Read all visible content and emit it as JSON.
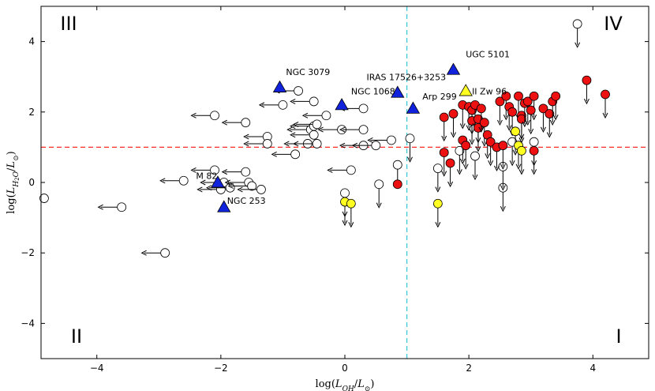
{
  "chart_data": {
    "type": "scatter",
    "title": "",
    "xlabel_html": "log(L<tspan baseline-shift='sub' font-size='9'>OH</tspan>/L<tspan baseline-shift='sub' font-size='9'>☉</tspan>)",
    "xlabel": "log(L_OH/L_☉)",
    "ylabel": "log(L_H2O/L_☉)",
    "xlim": [
      -4.9,
      4.9
    ],
    "ylim": [
      -5.0,
      5.0
    ],
    "xticks": [
      -4,
      -2,
      0,
      2,
      4
    ],
    "yticks": [
      -4,
      -2,
      0,
      2,
      4
    ],
    "grid": false,
    "reference_lines": [
      {
        "orientation": "horizontal",
        "value": 1.0,
        "color": "#ff2b2b",
        "style": "dashed"
      },
      {
        "orientation": "vertical",
        "value": 1.0,
        "color": "#3ec8d8",
        "style": "dashed"
      }
    ],
    "quadrants": [
      {
        "label": "III",
        "position": "top-left"
      },
      {
        "label": "IV",
        "position": "top-right"
      },
      {
        "label": "II",
        "position": "bottom-left"
      },
      {
        "label": "I",
        "position": "bottom-right"
      }
    ],
    "colors": {
      "open": "#ffffff",
      "red": "#ee1111",
      "yellow": "#ffff22",
      "blue": "#1122dd",
      "edge": "#000000"
    },
    "open_both_limits": [
      [
        -3.6,
        -0.7
      ],
      [
        -2.9,
        -2.0
      ],
      [
        -2.6,
        0.05
      ],
      [
        -2.1,
        1.9
      ],
      [
        -2.1,
        0.35
      ],
      [
        -2.0,
        -0.2
      ],
      [
        -1.95,
        0.0
      ],
      [
        -1.85,
        -0.15
      ],
      [
        -1.6,
        1.7
      ],
      [
        -1.6,
        0.3
      ],
      [
        -1.55,
        0.0
      ],
      [
        -1.5,
        -0.1
      ],
      [
        -1.35,
        -0.2
      ],
      [
        -1.25,
        1.3
      ],
      [
        -1.25,
        1.1
      ],
      [
        -1.0,
        2.2
      ],
      [
        -0.8,
        0.8
      ],
      [
        -0.75,
        2.6
      ],
      [
        -0.6,
        1.1
      ],
      [
        -0.55,
        1.5
      ],
      [
        -0.5,
        2.3
      ],
      [
        -0.5,
        1.6
      ],
      [
        -0.5,
        1.35
      ],
      [
        -0.45,
        1.65
      ],
      [
        -0.45,
        1.1
      ],
      [
        -0.3,
        1.9
      ],
      [
        -0.05,
        1.5
      ],
      [
        0.1,
        0.35
      ],
      [
        0.3,
        2.1
      ],
      [
        0.3,
        1.5
      ],
      [
        0.3,
        1.05
      ],
      [
        0.5,
        1.05
      ],
      [
        0.75,
        1.2
      ]
    ],
    "open_x_limits": [
      [
        -4.85,
        -0.45
      ]
    ],
    "open_y_limits": [
      [
        0.0,
        -0.3
      ],
      [
        0.55,
        -0.05
      ],
      [
        0.85,
        0.5
      ],
      [
        1.05,
        1.25
      ],
      [
        1.5,
        0.4
      ],
      [
        1.85,
        0.9
      ],
      [
        2.1,
        0.75
      ],
      [
        2.55,
        -0.15
      ],
      [
        2.55,
        0.45
      ],
      [
        2.7,
        1.15
      ],
      [
        3.05,
        1.15
      ],
      [
        3.75,
        4.5
      ]
    ],
    "red_y_limits": [
      [
        1.6,
        1.85
      ],
      [
        1.6,
        0.85
      ],
      [
        1.7,
        0.55
      ],
      [
        1.75,
        1.95
      ],
      [
        1.9,
        2.2
      ],
      [
        1.9,
        1.2
      ],
      [
        1.95,
        1.05
      ],
      [
        2.0,
        2.15
      ],
      [
        2.05,
        2.05
      ],
      [
        2.05,
        1.75
      ],
      [
        2.1,
        2.2
      ],
      [
        2.15,
        1.8
      ],
      [
        2.15,
        1.55
      ],
      [
        2.2,
        2.1
      ],
      [
        2.25,
        1.7
      ],
      [
        2.3,
        1.35
      ],
      [
        2.35,
        1.15
      ],
      [
        2.45,
        1.0
      ],
      [
        2.5,
        2.3
      ],
      [
        2.55,
        1.05
      ],
      [
        2.6,
        2.45
      ],
      [
        2.65,
        2.15
      ],
      [
        2.7,
        2.0
      ],
      [
        2.8,
        2.45
      ],
      [
        2.85,
        1.9
      ],
      [
        2.85,
        1.8
      ],
      [
        2.9,
        2.25
      ],
      [
        2.95,
        2.3
      ],
      [
        3.05,
        2.45
      ],
      [
        3.0,
        2.05
      ],
      [
        3.05,
        0.9
      ],
      [
        3.2,
        2.1
      ],
      [
        3.3,
        1.95
      ],
      [
        3.35,
        2.3
      ],
      [
        3.4,
        2.45
      ],
      [
        3.9,
        2.9
      ],
      [
        4.2,
        2.5
      ]
    ],
    "red_no_limit": [
      [
        0.85,
        -0.05
      ]
    ],
    "yellow_y_limits": [
      [
        0.0,
        -0.55
      ],
      [
        0.1,
        -0.6
      ],
      [
        1.5,
        -0.6
      ],
      [
        2.75,
        1.45
      ],
      [
        2.8,
        1.05
      ],
      [
        2.85,
        0.9
      ]
    ],
    "blue_triangles": [
      [
        -1.05,
        2.7
      ],
      [
        -0.05,
        2.2
      ],
      [
        0.85,
        2.55
      ],
      [
        1.1,
        2.1
      ],
      [
        1.75,
        3.2
      ],
      [
        -2.05,
        0.0
      ],
      [
        -1.95,
        -0.7
      ]
    ],
    "yellow_triangles": [
      [
        1.95,
        2.6
      ]
    ],
    "annotations": [
      {
        "text": "NGC 3079",
        "x": -0.95,
        "y": 3.05
      },
      {
        "text": "NGC 1068",
        "x": 0.1,
        "y": 2.5
      },
      {
        "text": "IRAS 17526+3253",
        "x": 0.35,
        "y": 2.9
      },
      {
        "text": "UGC 5101",
        "x": 1.95,
        "y": 3.55
      },
      {
        "text": "Arp 299",
        "x": 1.25,
        "y": 2.35
      },
      {
        "text": "II Zw 96",
        "x": 2.05,
        "y": 2.5
      },
      {
        "text": "M 82",
        "x": -2.4,
        "y": 0.1
      },
      {
        "text": "NGC 253",
        "x": -1.9,
        "y": -0.6
      }
    ]
  }
}
